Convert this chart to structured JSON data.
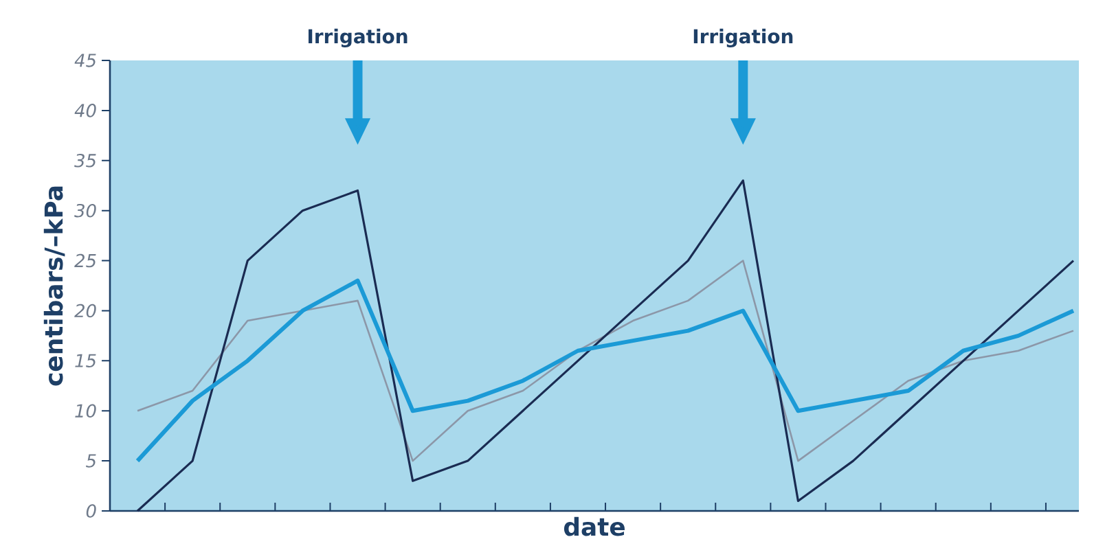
{
  "chart_data": {
    "type": "line",
    "xlabel": "date",
    "ylabel": "centibars/–kPa",
    "categories": [
      null,
      null,
      null,
      null,
      null,
      null,
      null,
      null,
      null,
      null,
      null,
      null,
      null,
      null,
      null,
      null,
      null,
      null
    ],
    "ylim": [
      0,
      45
    ],
    "yticks": [
      0,
      5,
      10,
      15,
      20,
      25,
      30,
      35,
      40,
      45
    ],
    "tick_labels": "y",
    "grid": false,
    "series": [
      {
        "color": "#8c97a8",
        "values": [
          10,
          12,
          19,
          20,
          21,
          5,
          10,
          12,
          16,
          19,
          21,
          25,
          5,
          9,
          13,
          15,
          16,
          18
        ]
      },
      {
        "color": "#1a2b52",
        "values": [
          0,
          5,
          25,
          30,
          32,
          3,
          5,
          10,
          15,
          20,
          25,
          33,
          1,
          5,
          10,
          15,
          20,
          25
        ]
      },
      {
        "color": "#1b9ad6",
        "values": [
          5,
          11,
          15,
          20,
          23,
          10,
          11,
          13,
          16,
          17,
          18,
          20,
          10,
          11,
          12,
          16,
          17.5,
          20
        ]
      }
    ],
    "annotations": [
      "Irrigation",
      "Irrigation"
    ]
  }
}
